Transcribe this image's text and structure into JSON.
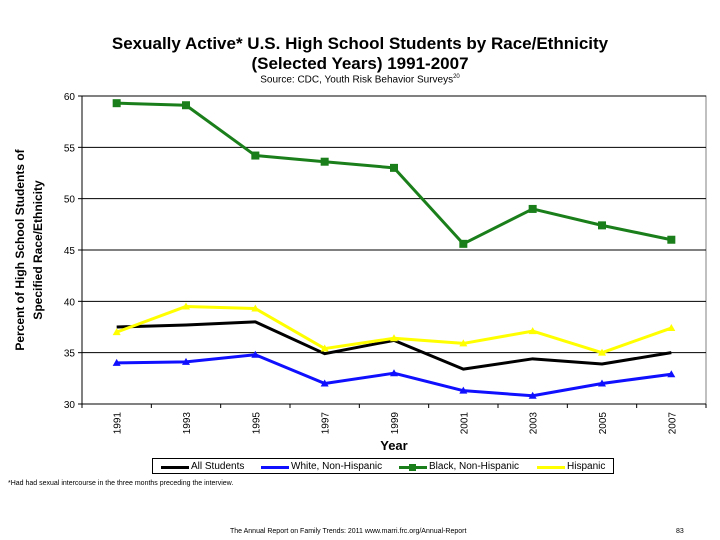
{
  "chart_data": {
    "type": "line",
    "title_line1": "Sexually Active* U.S. High School Students by Race/Ethnicity",
    "title_line2": "(Selected Years) 1991-2007",
    "source": "Source: CDC, Youth Risk Behavior Surveys",
    "source_note": "20",
    "xlabel": "Year",
    "ylabel_line1": "Percent of High School Students of",
    "ylabel_line2": "Specified Race/Ethnicity",
    "categories": [
      "1991",
      "1993",
      "1995",
      "1997",
      "1999",
      "2001",
      "2003",
      "2005",
      "2007"
    ],
    "ylim": [
      30,
      60
    ],
    "yticks": [
      "30",
      "35",
      "40",
      "45",
      "50",
      "55",
      "60"
    ],
    "grid": true,
    "legend_position": "bottom",
    "series": [
      {
        "name": "All Students",
        "color": "#000000",
        "marker": "none",
        "values": [
          37.5,
          37.7,
          38.0,
          34.9,
          36.2,
          33.4,
          34.4,
          33.9,
          35.0
        ]
      },
      {
        "name": "White, Non-Hispanic",
        "color": "#1010ff",
        "marker": "triangle",
        "values": [
          34.0,
          34.1,
          34.8,
          32.0,
          33.0,
          31.3,
          30.8,
          32.0,
          32.9
        ]
      },
      {
        "name": "Black, Non-Hispanic",
        "color": "#1a7f1a",
        "marker": "square",
        "values": [
          59.3,
          59.1,
          54.2,
          53.6,
          53.0,
          45.6,
          49.0,
          47.4,
          46.0
        ]
      },
      {
        "name": "Hispanic",
        "color": "#ffff00",
        "marker": "triangle",
        "values": [
          37.0,
          39.5,
          39.3,
          35.4,
          36.4,
          35.9,
          37.1,
          35.0,
          37.4
        ]
      }
    ]
  },
  "footnote": "*Had had sexual intercourse in the three months preceding the interview.",
  "footer": {
    "text": "The Annual Report on Family Trends: 2011    www.marri.frc.org/Annual-Report",
    "page": "83"
  }
}
